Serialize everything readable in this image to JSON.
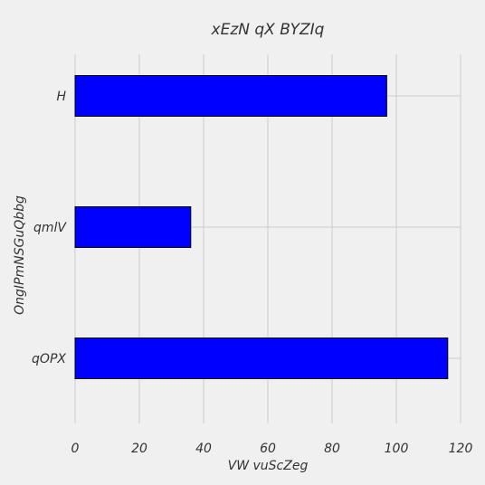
{
  "chart_data": {
    "type": "bar",
    "orientation": "horizontal",
    "title": "xEzN  qX BYZIq",
    "xlabel": "VW vuScZeg",
    "ylabel": "OngIPmNSGuQbbg",
    "categories": [
      "H",
      "qmlV",
      "qOPX"
    ],
    "values": [
      97,
      36,
      116
    ],
    "xlim": [
      0,
      120
    ],
    "xticks": [
      "0",
      "20",
      "40",
      "60",
      "80",
      "100",
      "120"
    ],
    "grid": true,
    "bar_color": "#0000ff",
    "edge_color": "#000000",
    "background": "#f0f0f0"
  }
}
